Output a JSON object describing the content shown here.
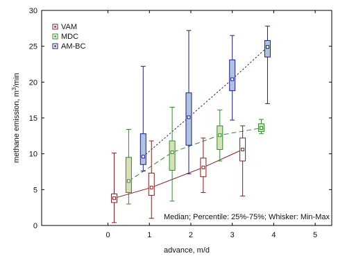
{
  "chart_data": {
    "type": "box",
    "xlabel": "advance, m/d",
    "ylabel_parts": [
      "methane emission, m",
      "3",
      "/min"
    ],
    "xlim": [
      -1.6,
      5.4
    ],
    "ylim": [
      0,
      30
    ],
    "xticks": [
      0,
      1,
      2,
      3,
      4,
      5
    ],
    "yticks": [
      0,
      5,
      10,
      15,
      20,
      25,
      30
    ],
    "grid": false,
    "legend_position": "top-left",
    "annotation": "Median; Percentile: 25%-75%; Whisker: Min-Max",
    "series": [
      {
        "name": "VAM",
        "color": "#8b1a1a",
        "fill": "#ffffff",
        "line_style": "solid",
        "boxes": [
          {
            "x": 0.15,
            "min": 0.4,
            "q1": 3.2,
            "median": 3.8,
            "q3": 4.4,
            "max": 10.1
          },
          {
            "x": 1.05,
            "min": 1.0,
            "q1": 4.2,
            "median": 5.3,
            "q3": 7.3,
            "max": 11.8
          },
          {
            "x": 2.3,
            "min": 4.6,
            "q1": 6.8,
            "median": 8.1,
            "q3": 9.4,
            "max": 12.2
          },
          {
            "x": 3.25,
            "min": 4.1,
            "q1": 9.0,
            "median": 10.6,
            "q3": 12.2,
            "max": 13.9
          }
        ]
      },
      {
        "name": "MDC",
        "color": "#2e8b2e",
        "fill": "#d8e0b8",
        "line_style": "dashed",
        "boxes": [
          {
            "x": 0.5,
            "min": 3.0,
            "q1": 4.6,
            "median": 6.2,
            "q3": 9.5,
            "max": 13.4
          },
          {
            "x": 1.55,
            "min": 3.4,
            "q1": 7.7,
            "median": 10.2,
            "q3": 11.8,
            "max": 16.5
          },
          {
            "x": 2.7,
            "min": 9.0,
            "q1": 10.6,
            "median": 12.6,
            "q3": 13.9,
            "max": 16.1
          },
          {
            "x": 3.7,
            "min": 12.8,
            "q1": 13.1,
            "median": 13.6,
            "q3": 14.2,
            "max": 14.8
          }
        ]
      },
      {
        "name": "AM-BC",
        "color": "#1a1a8b",
        "fill": "#b0c4de",
        "line_style": "dotted",
        "boxes": [
          {
            "x": 0.85,
            "min": 7.6,
            "q1": 8.5,
            "median": 9.6,
            "q3": 12.8,
            "max": 22.2
          },
          {
            "x": 1.95,
            "min": 7.2,
            "q1": 11.2,
            "median": 15.1,
            "q3": 18.5,
            "max": 27.2
          },
          {
            "x": 3.0,
            "min": 14.7,
            "q1": 18.8,
            "median": 20.4,
            "q3": 23.1,
            "max": 26.5
          },
          {
            "x": 3.85,
            "min": 17.0,
            "q1": 23.5,
            "median": 24.9,
            "q3": 25.8,
            "max": 27.8
          }
        ]
      }
    ]
  }
}
